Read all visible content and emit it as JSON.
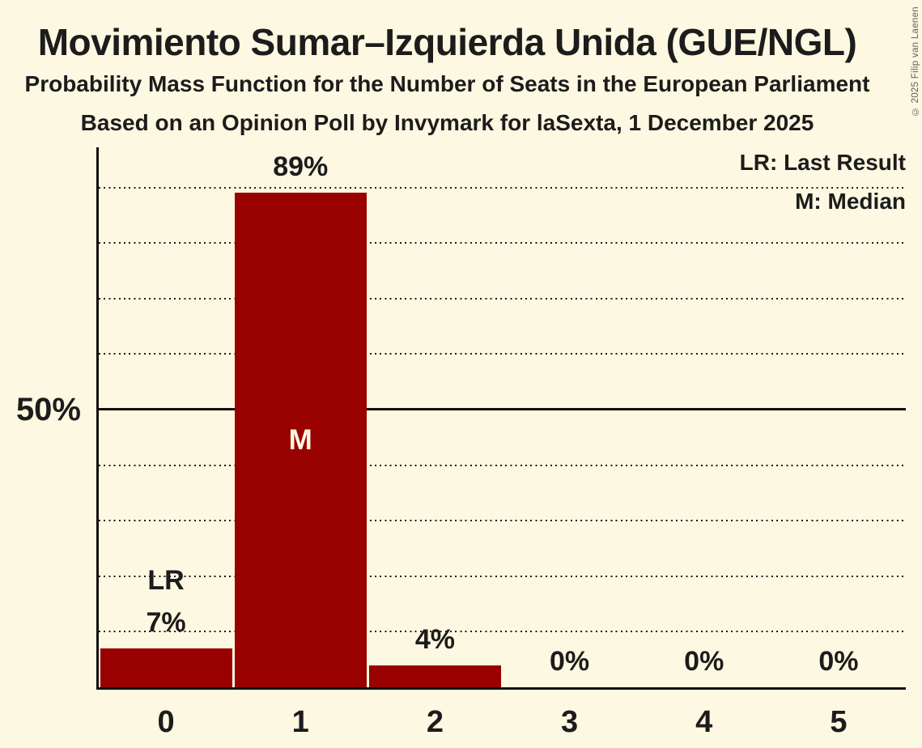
{
  "title": "Movimiento Sumar–Izquierda Unida (GUE/NGL)",
  "subtitle": "Probability Mass Function for the Number of Seats in the European Parliament",
  "source_line": "Based on an Opinion Poll by Invymark for laSexta, 1 December 2025",
  "copyright": "© 2025 Filip van Laenen",
  "legend": {
    "last_result": "LR: Last Result",
    "median": "M: Median"
  },
  "y_axis": {
    "tick_label": "50%",
    "tick_pct": 50
  },
  "colors": {
    "background": "#fdf8e1",
    "bar": "#990000",
    "text": "#1c1c1c",
    "median_text": "#fdf8e1",
    "copyright_text": "#606060"
  },
  "chart_data": {
    "type": "bar",
    "title": "Movimiento Sumar–Izquierda Unida (GUE/NGL)",
    "xlabel": "",
    "ylabel": "",
    "categories": [
      "0",
      "1",
      "2",
      "3",
      "4",
      "5"
    ],
    "values": [
      7,
      89,
      4,
      0,
      0,
      0
    ],
    "value_labels": [
      "7%",
      "89%",
      "4%",
      "0%",
      "0%",
      "0%"
    ],
    "ylim": [
      0,
      97
    ],
    "gridlines_pct": [
      10,
      20,
      30,
      40,
      50,
      60,
      70,
      80,
      90
    ],
    "solid_gridline_pct": 50,
    "grid": true,
    "legend_position": "top-right",
    "annotations": {
      "last_result_index": 0,
      "last_result_label": "LR",
      "median_index": 1,
      "median_label": "M"
    }
  }
}
